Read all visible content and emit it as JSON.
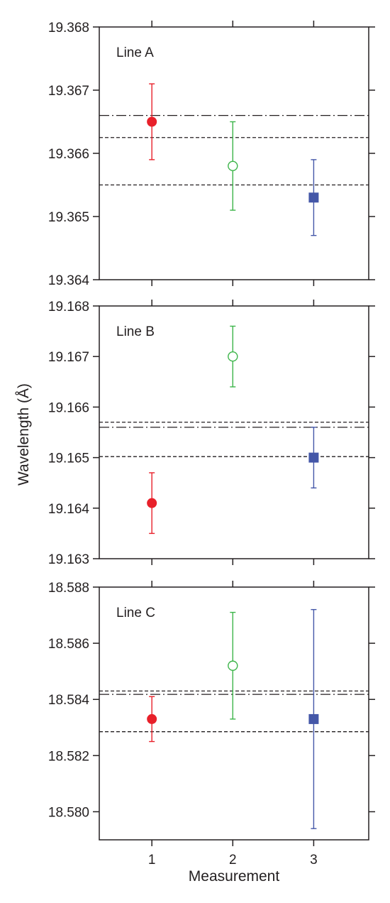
{
  "chart_data": {
    "type": "scatter",
    "ylabel": "Wavelength (Å)",
    "xlabel": "Measurement",
    "x_ticks": [
      "1",
      "2",
      "3"
    ],
    "xlim": [
      0.35,
      3.68
    ],
    "series_style": [
      {
        "color": "#e8202a",
        "marker": "filled-circle"
      },
      {
        "color": "#3db54a",
        "marker": "open-circle"
      },
      {
        "color": "#4457a8",
        "marker": "filled-square"
      }
    ],
    "panels": [
      {
        "label": "Line A",
        "ylim": [
          19.364,
          19.368
        ],
        "y_ticks": [
          "19.364",
          "19.365",
          "19.366",
          "19.367",
          "19.368"
        ],
        "y_tick_values": [
          19.364,
          19.365,
          19.366,
          19.367,
          19.368
        ],
        "points": [
          {
            "x": 1,
            "y": 19.3665,
            "err_low": 19.3659,
            "err_high": 19.3671
          },
          {
            "x": 2,
            "y": 19.3658,
            "err_low": 19.3651,
            "err_high": 19.3665
          },
          {
            "x": 3,
            "y": 19.3653,
            "err_low": 19.3647,
            "err_high": 19.3659
          }
        ],
        "dash_dot_line": 19.3666,
        "dashed_lines": [
          19.36625,
          19.3655
        ]
      },
      {
        "label": "Line B",
        "ylim": [
          19.163,
          19.168
        ],
        "y_ticks": [
          "19.163",
          "19.164",
          "19.165",
          "19.166",
          "19.167",
          "19.168"
        ],
        "y_tick_values": [
          19.163,
          19.164,
          19.165,
          19.166,
          19.167,
          19.168
        ],
        "points": [
          {
            "x": 1,
            "y": 19.1641,
            "err_low": 19.1635,
            "err_high": 19.1647
          },
          {
            "x": 2,
            "y": 19.167,
            "err_low": 19.1664,
            "err_high": 19.1676
          },
          {
            "x": 3,
            "y": 19.165,
            "err_low": 19.1644,
            "err_high": 19.1656
          }
        ],
        "dash_dot_line": 19.1656,
        "dashed_lines": [
          19.1657,
          19.16502
        ]
      },
      {
        "label": "Line C",
        "ylim": [
          18.579,
          18.588
        ],
        "y_ticks": [
          "18.580",
          "18.582",
          "18.584",
          "18.586",
          "18.588"
        ],
        "y_tick_values": [
          18.58,
          18.582,
          18.584,
          18.586,
          18.588
        ],
        "points": [
          {
            "x": 1,
            "y": 18.5833,
            "err_low": 18.5825,
            "err_high": 18.5841
          },
          {
            "x": 2,
            "y": 18.5852,
            "err_low": 18.5833,
            "err_high": 18.5871
          },
          {
            "x": 3,
            "y": 18.5833,
            "err_low": 18.5794,
            "err_high": 18.5872
          }
        ],
        "dash_dot_line": 18.58418,
        "dashed_lines": [
          18.5843,
          18.58285
        ]
      }
    ]
  }
}
